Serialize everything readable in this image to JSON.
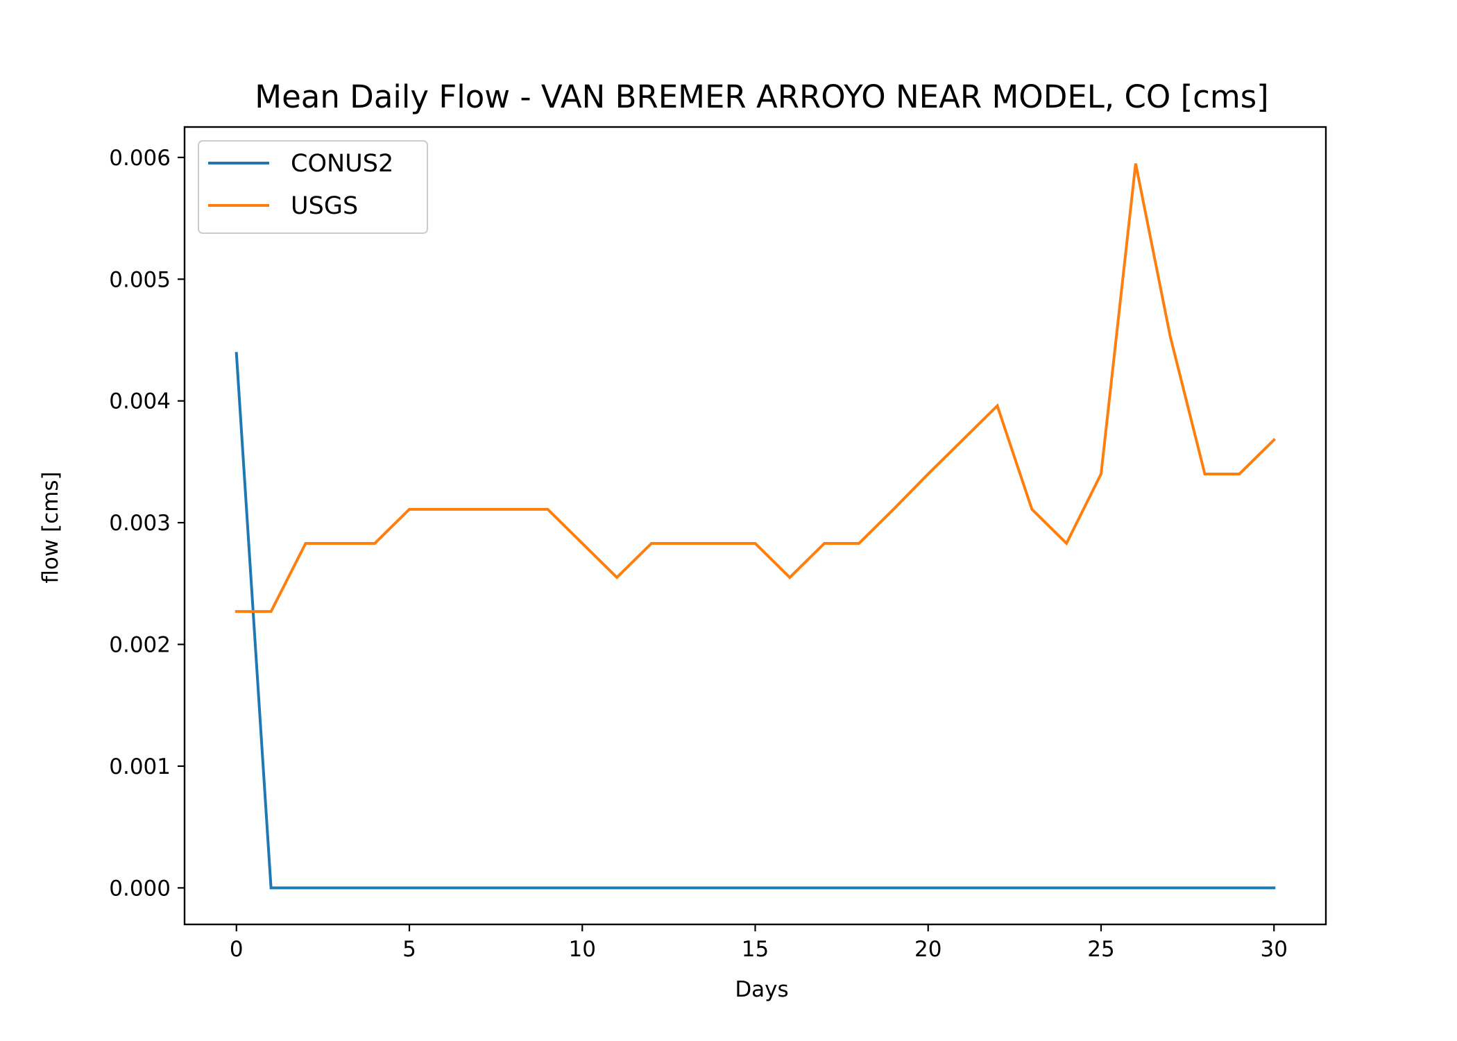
{
  "chart_data": {
    "type": "line",
    "title": "Mean Daily Flow - VAN BREMER ARROYO NEAR MODEL, CO [cms]",
    "xlabel": "Days",
    "ylabel": "flow [cms]",
    "xlim": [
      -1.5,
      31.5
    ],
    "ylim": [
      -0.0003,
      0.00625
    ],
    "xticks": [
      0,
      5,
      10,
      15,
      20,
      25,
      30
    ],
    "xtick_labels": [
      "0",
      "5",
      "10",
      "15",
      "20",
      "25",
      "30"
    ],
    "yticks": [
      0,
      0.001,
      0.002,
      0.003,
      0.004,
      0.005,
      0.006
    ],
    "ytick_labels": [
      "0.000",
      "0.001",
      "0.002",
      "0.003",
      "0.004",
      "0.005",
      "0.006"
    ],
    "grid": false,
    "legend_position": "top-left",
    "x": [
      0,
      1,
      2,
      3,
      4,
      5,
      6,
      7,
      8,
      9,
      10,
      11,
      12,
      13,
      14,
      15,
      16,
      17,
      18,
      19,
      20,
      21,
      22,
      23,
      24,
      25,
      26,
      27,
      28,
      29,
      30
    ],
    "series": [
      {
        "name": "CONUS2",
        "color": "#1f77b4",
        "values": [
          0.00439,
          0,
          0,
          0,
          0,
          0,
          0,
          0,
          0,
          0,
          0,
          0,
          0,
          0,
          0,
          0,
          0,
          0,
          0,
          0,
          0,
          0,
          0,
          0,
          0,
          0,
          0,
          0,
          0,
          0,
          0
        ]
      },
      {
        "name": "USGS",
        "color": "#ff7f0e",
        "values": [
          0.00227,
          0.00227,
          0.00283,
          0.00283,
          0.00283,
          0.00311,
          0.00311,
          0.00311,
          0.00311,
          0.00311,
          0.00283,
          0.00255,
          0.00283,
          0.00283,
          0.00283,
          0.00283,
          0.00255,
          0.00283,
          0.00283,
          0.00311,
          0.0034,
          0.00368,
          0.00396,
          0.00311,
          0.00283,
          0.0034,
          0.00595,
          0.00453,
          0.0034,
          0.0034,
          0.00368
        ]
      }
    ]
  }
}
